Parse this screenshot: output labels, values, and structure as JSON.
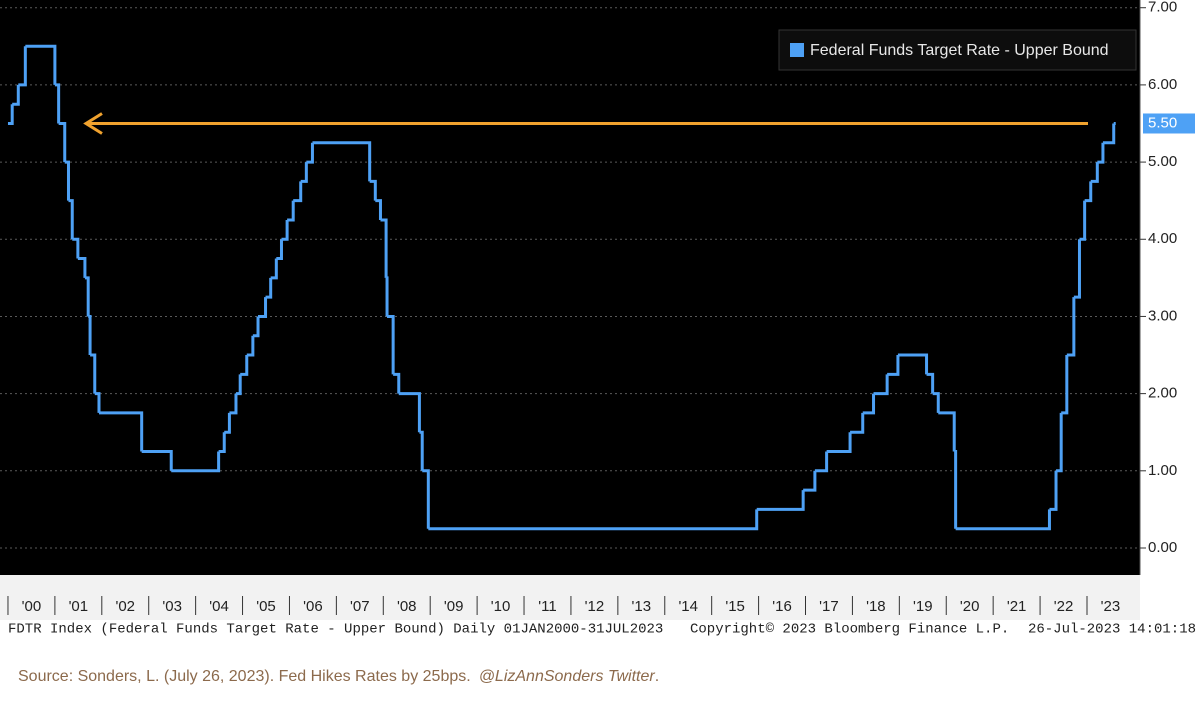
{
  "chart_data": {
    "type": "line",
    "step": true,
    "series": [
      {
        "name": "Federal Funds Target Rate - Upper Bound",
        "color": "#4ea1f5",
        "x": [
          2000.0,
          2000.09,
          2000.22,
          2000.37,
          2001.0,
          2001.08,
          2001.21,
          2001.29,
          2001.37,
          2001.49,
          2001.64,
          2001.71,
          2001.75,
          2001.85,
          2001.94,
          2002.85,
          2003.48,
          2004.49,
          2004.61,
          2004.72,
          2004.86,
          2004.95,
          2005.09,
          2005.22,
          2005.33,
          2005.49,
          2005.6,
          2005.72,
          2005.83,
          2005.95,
          2006.08,
          2006.24,
          2006.36,
          2006.49,
          2007.71,
          2007.83,
          2007.94,
          2008.06,
          2008.08,
          2008.21,
          2008.33,
          2008.77,
          2008.83,
          2008.96,
          2015.96,
          2016.95,
          2017.2,
          2017.45,
          2017.95,
          2018.22,
          2018.45,
          2018.74,
          2018.97,
          2019.58,
          2019.71,
          2019.83,
          2020.17,
          2020.2,
          2022.2,
          2022.34,
          2022.45,
          2022.57,
          2022.72,
          2022.84,
          2022.95,
          2023.08,
          2023.22,
          2023.34,
          2023.57
        ],
        "values": [
          5.5,
          5.75,
          6.0,
          6.5,
          6.0,
          5.5,
          5.0,
          4.5,
          4.0,
          3.75,
          3.5,
          3.0,
          2.5,
          2.0,
          1.75,
          1.25,
          1.0,
          1.25,
          1.5,
          1.75,
          2.0,
          2.25,
          2.5,
          2.75,
          3.0,
          3.25,
          3.5,
          3.75,
          4.0,
          4.25,
          4.5,
          4.75,
          5.0,
          5.25,
          4.75,
          4.5,
          4.25,
          3.5,
          3.0,
          2.25,
          2.0,
          1.5,
          1.0,
          0.25,
          0.5,
          0.75,
          1.0,
          1.25,
          1.5,
          1.75,
          2.0,
          2.25,
          2.5,
          2.25,
          2.0,
          1.75,
          1.25,
          0.25,
          0.5,
          1.0,
          1.75,
          2.5,
          3.25,
          4.0,
          4.5,
          4.75,
          5.0,
          5.25,
          5.5
        ]
      }
    ],
    "xlim": [
      1999.83,
      2024.13
    ],
    "ylim": [
      -0.35,
      7.1
    ],
    "yticks": [
      {
        "value": 0,
        "label": "0.00"
      },
      {
        "value": 1,
        "label": "1.00"
      },
      {
        "value": 2,
        "label": "2.00"
      },
      {
        "value": 3,
        "label": "3.00"
      },
      {
        "value": 4,
        "label": "4.00"
      },
      {
        "value": 5,
        "label": "5.00"
      },
      {
        "value": 6,
        "label": "6.00"
      },
      {
        "value": 7,
        "label": "7.00"
      }
    ],
    "xticks": [
      {
        "value": 2000,
        "label": "'00"
      },
      {
        "value": 2001,
        "label": "'01"
      },
      {
        "value": 2002,
        "label": "'02"
      },
      {
        "value": 2003,
        "label": "'03"
      },
      {
        "value": 2004,
        "label": "'04"
      },
      {
        "value": 2005,
        "label": "'05"
      },
      {
        "value": 2006,
        "label": "'06"
      },
      {
        "value": 2007,
        "label": "'07"
      },
      {
        "value": 2008,
        "label": "'08"
      },
      {
        "value": 2009,
        "label": "'09"
      },
      {
        "value": 2010,
        "label": "'10"
      },
      {
        "value": 2011,
        "label": "'11"
      },
      {
        "value": 2012,
        "label": "'12"
      },
      {
        "value": 2013,
        "label": "'13"
      },
      {
        "value": 2014,
        "label": "'14"
      },
      {
        "value": 2015,
        "label": "'15"
      },
      {
        "value": 2016,
        "label": "'16"
      },
      {
        "value": 2017,
        "label": "'17"
      },
      {
        "value": 2018,
        "label": "'18"
      },
      {
        "value": 2019,
        "label": "'19"
      },
      {
        "value": 2020,
        "label": "'20"
      },
      {
        "value": 2021,
        "label": "'21"
      },
      {
        "value": 2022,
        "label": "'22"
      },
      {
        "value": 2023,
        "label": "'23"
      }
    ],
    "grid": true,
    "legend": "upper right",
    "last_label": {
      "value": 5.5,
      "label": "5.50"
    }
  },
  "footer": {
    "index": "FDTR Index (Federal Funds Target Rate - Upper Bound) Daily 01JAN2000-31JUL2023",
    "copyright": "Copyright© 2023 Bloomberg Finance L.P.",
    "timestamp": "26-Jul-2023 14:01:18"
  },
  "source": {
    "text": "Source: Sonders, L. (July 26, 2023). Fed Hikes Rates by 25bps.",
    "handle": "@LizAnnSonders Twitter",
    "end": "."
  }
}
